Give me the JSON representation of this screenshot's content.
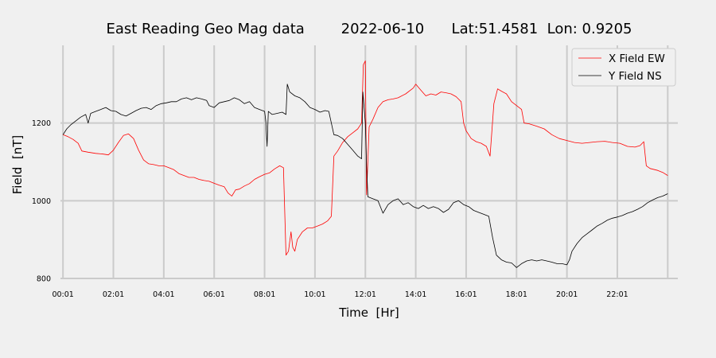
{
  "chart_data": {
    "type": "line",
    "title": "East Reading Geo Mag data        2022-06-10      Lat:51.4581  Lon: 0.9205",
    "xlabel": "Time  [Hr]",
    "ylabel": "Field  [nT]",
    "x_unit": "hours",
    "xlim": [
      -0.1,
      24.4
    ],
    "ylim": [
      800,
      1400
    ],
    "x_ticks": [
      {
        "value": 0,
        "label": "00:01"
      },
      {
        "value": 2,
        "label": "02:01"
      },
      {
        "value": 4,
        "label": "04:01"
      },
      {
        "value": 6,
        "label": "06:01"
      },
      {
        "value": 8,
        "label": "08:01"
      },
      {
        "value": 10,
        "label": "10:01"
      },
      {
        "value": 12,
        "label": "12:01"
      },
      {
        "value": 14,
        "label": "14:01"
      },
      {
        "value": 16,
        "label": "16:01"
      },
      {
        "value": 18,
        "label": "18:01"
      },
      {
        "value": 20,
        "label": "20:01"
      },
      {
        "value": 22,
        "label": "22:01"
      }
    ],
    "x_grid_extra": [
      24
    ],
    "y_ticks": [
      {
        "value": 800,
        "label": "800"
      },
      {
        "value": 1000,
        "label": "1000"
      },
      {
        "value": 1200,
        "label": "1200"
      }
    ],
    "grid": true,
    "legend_position": "top-right",
    "series": [
      {
        "name": "X Field EW",
        "color": "#ff0000",
        "points": [
          [
            0.0,
            1170
          ],
          [
            0.2,
            1165
          ],
          [
            0.4,
            1158
          ],
          [
            0.6,
            1148
          ],
          [
            0.75,
            1128
          ],
          [
            1.0,
            1125
          ],
          [
            1.3,
            1122
          ],
          [
            1.6,
            1120
          ],
          [
            1.8,
            1118
          ],
          [
            2.0,
            1130
          ],
          [
            2.2,
            1150
          ],
          [
            2.4,
            1168
          ],
          [
            2.6,
            1172
          ],
          [
            2.8,
            1160
          ],
          [
            3.0,
            1130
          ],
          [
            3.2,
            1105
          ],
          [
            3.4,
            1095
          ],
          [
            3.6,
            1093
          ],
          [
            3.8,
            1090
          ],
          [
            4.0,
            1090
          ],
          [
            4.2,
            1085
          ],
          [
            4.4,
            1080
          ],
          [
            4.6,
            1070
          ],
          [
            4.8,
            1065
          ],
          [
            5.0,
            1060
          ],
          [
            5.2,
            1060
          ],
          [
            5.4,
            1055
          ],
          [
            5.6,
            1052
          ],
          [
            5.8,
            1050
          ],
          [
            6.0,
            1045
          ],
          [
            6.2,
            1040
          ],
          [
            6.4,
            1036
          ],
          [
            6.55,
            1020
          ],
          [
            6.7,
            1012
          ],
          [
            6.85,
            1028
          ],
          [
            7.0,
            1030
          ],
          [
            7.2,
            1038
          ],
          [
            7.4,
            1044
          ],
          [
            7.6,
            1055
          ],
          [
            7.8,
            1062
          ],
          [
            8.0,
            1068
          ],
          [
            8.2,
            1072
          ],
          [
            8.4,
            1082
          ],
          [
            8.6,
            1090
          ],
          [
            8.75,
            1085
          ],
          [
            8.85,
            860
          ],
          [
            8.95,
            870
          ],
          [
            9.05,
            920
          ],
          [
            9.12,
            880
          ],
          [
            9.2,
            870
          ],
          [
            9.3,
            900
          ],
          [
            9.5,
            920
          ],
          [
            9.7,
            930
          ],
          [
            9.9,
            930
          ],
          [
            10.1,
            935
          ],
          [
            10.3,
            940
          ],
          [
            10.5,
            948
          ],
          [
            10.65,
            960
          ],
          [
            10.75,
            1115
          ],
          [
            10.9,
            1128
          ],
          [
            11.1,
            1150
          ],
          [
            11.3,
            1165
          ],
          [
            11.5,
            1175
          ],
          [
            11.7,
            1185
          ],
          [
            11.85,
            1200
          ],
          [
            11.92,
            1350
          ],
          [
            12.0,
            1360
          ],
          [
            12.05,
            1015
          ],
          [
            12.15,
            1190
          ],
          [
            12.3,
            1210
          ],
          [
            12.5,
            1240
          ],
          [
            12.7,
            1255
          ],
          [
            12.9,
            1260
          ],
          [
            13.1,
            1262
          ],
          [
            13.3,
            1265
          ],
          [
            13.6,
            1275
          ],
          [
            13.9,
            1290
          ],
          [
            14.0,
            1300
          ],
          [
            14.2,
            1285
          ],
          [
            14.4,
            1270
          ],
          [
            14.6,
            1275
          ],
          [
            14.8,
            1272
          ],
          [
            15.0,
            1280
          ],
          [
            15.2,
            1278
          ],
          [
            15.4,
            1275
          ],
          [
            15.6,
            1268
          ],
          [
            15.8,
            1255
          ],
          [
            15.9,
            1200
          ],
          [
            16.0,
            1180
          ],
          [
            16.2,
            1160
          ],
          [
            16.4,
            1152
          ],
          [
            16.6,
            1148
          ],
          [
            16.8,
            1140
          ],
          [
            16.95,
            1115
          ],
          [
            17.1,
            1250
          ],
          [
            17.25,
            1288
          ],
          [
            17.4,
            1282
          ],
          [
            17.6,
            1275
          ],
          [
            17.8,
            1255
          ],
          [
            18.0,
            1245
          ],
          [
            18.2,
            1235
          ],
          [
            18.3,
            1200
          ],
          [
            18.5,
            1198
          ],
          [
            18.8,
            1192
          ],
          [
            19.1,
            1185
          ],
          [
            19.4,
            1170
          ],
          [
            19.7,
            1160
          ],
          [
            20.0,
            1155
          ],
          [
            20.3,
            1150
          ],
          [
            20.6,
            1148
          ],
          [
            20.9,
            1150
          ],
          [
            21.2,
            1152
          ],
          [
            21.5,
            1153
          ],
          [
            21.8,
            1150
          ],
          [
            22.1,
            1148
          ],
          [
            22.4,
            1140
          ],
          [
            22.7,
            1138
          ],
          [
            22.9,
            1142
          ],
          [
            23.05,
            1152
          ],
          [
            23.15,
            1090
          ],
          [
            23.3,
            1083
          ],
          [
            23.6,
            1078
          ],
          [
            23.8,
            1073
          ],
          [
            24.0,
            1065
          ]
        ]
      },
      {
        "name": "Y Field NS",
        "color": "#000000",
        "points": [
          [
            0.0,
            1170
          ],
          [
            0.15,
            1185
          ],
          [
            0.3,
            1195
          ],
          [
            0.5,
            1205
          ],
          [
            0.7,
            1215
          ],
          [
            0.9,
            1222
          ],
          [
            1.0,
            1200
          ],
          [
            1.1,
            1225
          ],
          [
            1.3,
            1230
          ],
          [
            1.5,
            1235
          ],
          [
            1.7,
            1240
          ],
          [
            1.9,
            1232
          ],
          [
            2.1,
            1230
          ],
          [
            2.3,
            1222
          ],
          [
            2.5,
            1218
          ],
          [
            2.7,
            1225
          ],
          [
            2.9,
            1232
          ],
          [
            3.1,
            1238
          ],
          [
            3.3,
            1240
          ],
          [
            3.5,
            1235
          ],
          [
            3.7,
            1245
          ],
          [
            3.9,
            1250
          ],
          [
            4.1,
            1252
          ],
          [
            4.3,
            1255
          ],
          [
            4.5,
            1255
          ],
          [
            4.7,
            1262
          ],
          [
            4.9,
            1265
          ],
          [
            5.1,
            1260
          ],
          [
            5.3,
            1265
          ],
          [
            5.5,
            1262
          ],
          [
            5.7,
            1258
          ],
          [
            5.8,
            1245
          ],
          [
            6.0,
            1240
          ],
          [
            6.2,
            1252
          ],
          [
            6.4,
            1255
          ],
          [
            6.6,
            1258
          ],
          [
            6.8,
            1265
          ],
          [
            7.0,
            1260
          ],
          [
            7.2,
            1250
          ],
          [
            7.4,
            1255
          ],
          [
            7.6,
            1240
          ],
          [
            7.8,
            1235
          ],
          [
            8.0,
            1230
          ],
          [
            8.05,
            1205
          ],
          [
            8.1,
            1140
          ],
          [
            8.15,
            1230
          ],
          [
            8.3,
            1222
          ],
          [
            8.5,
            1225
          ],
          [
            8.7,
            1228
          ],
          [
            8.85,
            1222
          ],
          [
            8.9,
            1300
          ],
          [
            9.0,
            1280
          ],
          [
            9.2,
            1270
          ],
          [
            9.4,
            1265
          ],
          [
            9.6,
            1255
          ],
          [
            9.8,
            1240
          ],
          [
            10.0,
            1235
          ],
          [
            10.2,
            1228
          ],
          [
            10.4,
            1232
          ],
          [
            10.55,
            1230
          ],
          [
            10.65,
            1200
          ],
          [
            10.75,
            1170
          ],
          [
            10.9,
            1168
          ],
          [
            11.1,
            1160
          ],
          [
            11.3,
            1145
          ],
          [
            11.5,
            1130
          ],
          [
            11.7,
            1115
          ],
          [
            11.85,
            1108
          ],
          [
            11.9,
            1280
          ],
          [
            12.0,
            1200
          ],
          [
            12.05,
            1090
          ],
          [
            12.1,
            1010
          ],
          [
            12.3,
            1005
          ],
          [
            12.5,
            1000
          ],
          [
            12.7,
            968
          ],
          [
            12.9,
            990
          ],
          [
            13.1,
            1000
          ],
          [
            13.3,
            1005
          ],
          [
            13.5,
            990
          ],
          [
            13.7,
            995
          ],
          [
            13.9,
            985
          ],
          [
            14.1,
            980
          ],
          [
            14.3,
            988
          ],
          [
            14.5,
            980
          ],
          [
            14.7,
            985
          ],
          [
            14.9,
            980
          ],
          [
            15.1,
            970
          ],
          [
            15.3,
            978
          ],
          [
            15.5,
            995
          ],
          [
            15.7,
            1000
          ],
          [
            15.9,
            990
          ],
          [
            16.1,
            985
          ],
          [
            16.3,
            975
          ],
          [
            16.5,
            970
          ],
          [
            16.7,
            965
          ],
          [
            16.9,
            960
          ],
          [
            17.05,
            905
          ],
          [
            17.2,
            860
          ],
          [
            17.4,
            848
          ],
          [
            17.6,
            842
          ],
          [
            17.8,
            840
          ],
          [
            18.0,
            828
          ],
          [
            18.2,
            838
          ],
          [
            18.4,
            845
          ],
          [
            18.6,
            848
          ],
          [
            18.8,
            845
          ],
          [
            19.0,
            848
          ],
          [
            19.2,
            845
          ],
          [
            19.4,
            842
          ],
          [
            19.6,
            838
          ],
          [
            19.8,
            838
          ],
          [
            20.0,
            835
          ],
          [
            20.1,
            848
          ],
          [
            20.2,
            870
          ],
          [
            20.4,
            890
          ],
          [
            20.6,
            905
          ],
          [
            20.8,
            915
          ],
          [
            21.0,
            925
          ],
          [
            21.2,
            935
          ],
          [
            21.4,
            942
          ],
          [
            21.6,
            950
          ],
          [
            21.8,
            955
          ],
          [
            22.0,
            958
          ],
          [
            22.2,
            962
          ],
          [
            22.4,
            968
          ],
          [
            22.6,
            972
          ],
          [
            22.8,
            978
          ],
          [
            23.0,
            985
          ],
          [
            23.2,
            995
          ],
          [
            23.4,
            1002
          ],
          [
            23.6,
            1008
          ],
          [
            23.8,
            1012
          ],
          [
            24.0,
            1018
          ]
        ]
      }
    ]
  }
}
